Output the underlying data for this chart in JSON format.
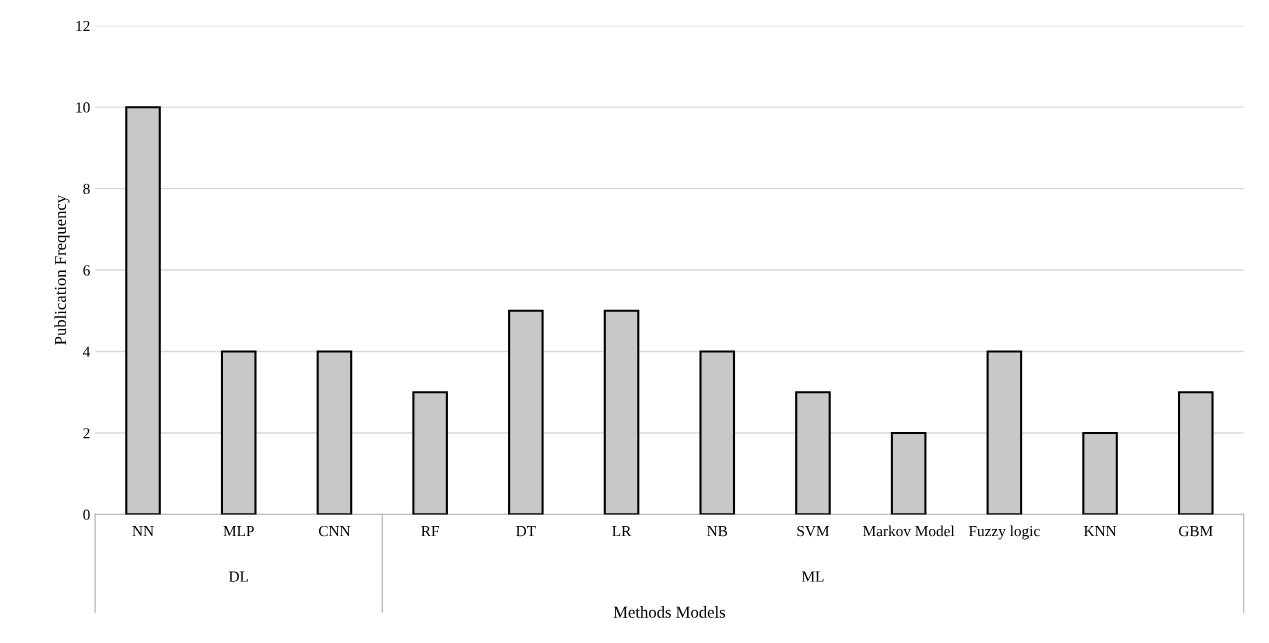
{
  "chart_data": {
    "type": "bar",
    "categories": [
      "NN",
      "MLP",
      "CNN",
      "RF",
      "DT",
      "LR",
      "NB",
      "SVM",
      "Markov Model",
      "Fuzzy logic",
      "KNN",
      "GBM"
    ],
    "values": [
      10,
      4,
      4,
      3,
      5,
      5,
      4,
      3,
      2,
      4,
      2,
      3
    ],
    "color": "#c8c8c8",
    "ylim": [
      0,
      12
    ],
    "yticks": [
      0,
      2,
      4,
      6,
      8,
      10,
      12
    ],
    "annotations": [
      "DL",
      "ML"
    ],
    "xlabel": "Methods Models",
    "ylabel": "Publication Frequency",
    "grid": "y"
  }
}
